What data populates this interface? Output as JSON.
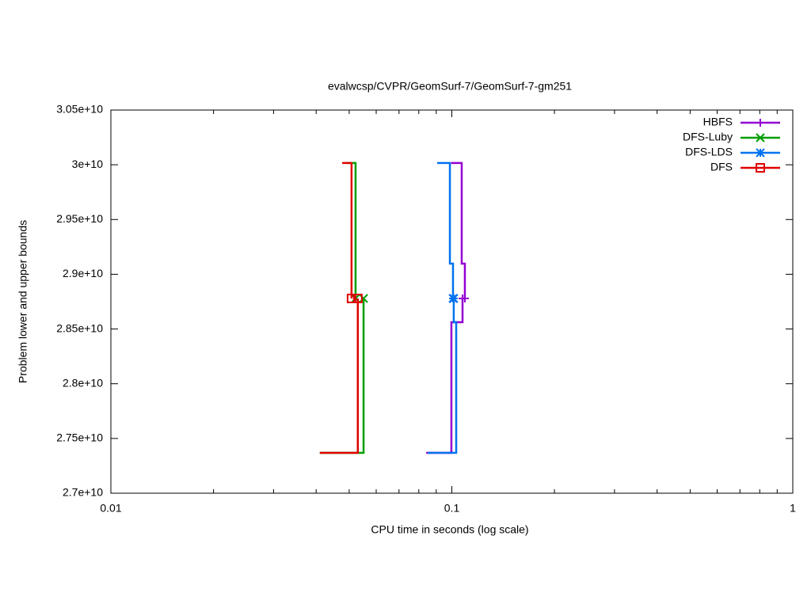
{
  "chart_data": {
    "type": "step",
    "title": "evalwcsp/CVPR/GeomSurf-7/GeomSurf-7-gm251",
    "x_label": "CPU time in seconds (log scale)",
    "y_label": "Problem lower and upper bounds",
    "xlog": true,
    "xlim": [
      0.01,
      1
    ],
    "xticks": [
      0.01,
      0.1,
      1
    ],
    "ylim": [
      27000000000,
      30500000000
    ],
    "yticks": [
      {
        "value": 27000000000,
        "label": "2.7e+10"
      },
      {
        "value": 27500000000,
        "label": "2.75e+10"
      },
      {
        "value": 28000000000,
        "label": "2.8e+10"
      },
      {
        "value": 28500000000,
        "label": "2.85e+10"
      },
      {
        "value": 29000000000,
        "label": "2.9e+10"
      },
      {
        "value": 29500000000,
        "label": "2.95e+10"
      },
      {
        "value": 30000000000,
        "label": "3e+10"
      },
      {
        "value": 30500000000,
        "label": "3.05e+10"
      }
    ],
    "legend": "top-right",
    "series": [
      {
        "name": "HBFS",
        "color": "#9400d3",
        "marker": "plus",
        "x": [
          0.0995,
          0.1069,
          0.1092,
          null,
          0.0841,
          0.0997,
          0.1075
        ],
        "values": [
          30016000000,
          29097000000,
          28779000000,
          null,
          27369000000,
          28562000000,
          28779000000
        ]
      },
      {
        "name": "DFS-Luby",
        "color": "#009e00",
        "marker": "cross",
        "x": [
          0.0492,
          0.0522,
          null,
          0.041,
          0.0551
        ],
        "values": [
          30016000000,
          28779000000,
          null,
          27369000000,
          28779000000
        ]
      },
      {
        "name": "DFS-LDS",
        "color": "#0072f0",
        "marker": "star",
        "x": [
          0.0906,
          0.0987,
          0.1008,
          null,
          0.085,
          0.103,
          0.1013
        ],
        "values": [
          30016000000,
          29097000000,
          28779000000,
          null,
          27369000000,
          28562000000,
          28779000000
        ]
      },
      {
        "name": "DFS",
        "color": "#e00000",
        "marker": "square",
        "x": [
          0.0477,
          0.0508,
          null,
          0.041,
          0.053
        ],
        "values": [
          30016000000,
          28779000000,
          null,
          27369000000,
          28779000000
        ]
      }
    ]
  }
}
